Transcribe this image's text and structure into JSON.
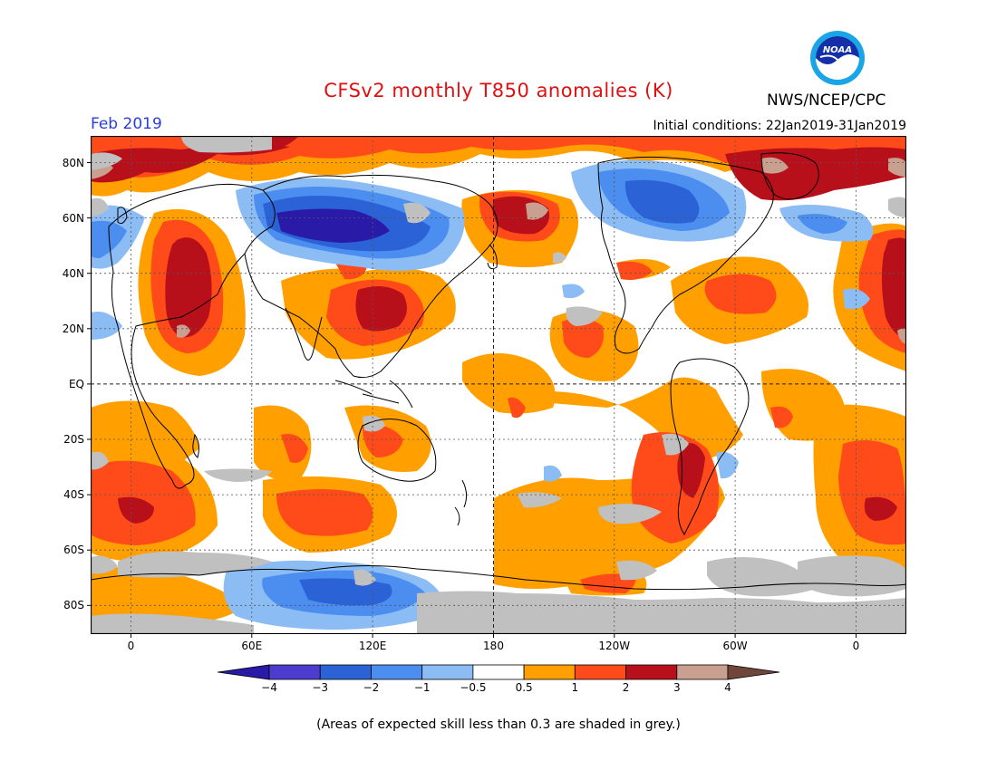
{
  "title": "CFSv2 monthly T850 anomalies (K)",
  "month": "Feb 2019",
  "agency": "NWS/NCEP/CPC",
  "logo_text": "NOAA",
  "initial_conditions": "Initial conditions: 22Jan2019-31Jan2019",
  "footnote": "(Areas of expected skill less than 0.3 are shaded in grey.)",
  "map": {
    "lon_ticks": [
      "0",
      "60E",
      "120E",
      "180",
      "120W",
      "60W",
      "0"
    ],
    "lat_ticks": [
      "80N",
      "60N",
      "40N",
      "20N",
      "EQ",
      "20S",
      "40S",
      "60S",
      "80S"
    ]
  },
  "colorbar": {
    "labels": [
      "−4",
      "−3",
      "−2",
      "−1",
      "−0.5",
      "0.5",
      "1",
      "2",
      "3",
      "4"
    ],
    "colors": [
      "#2a1aa8",
      "#4e3cd0",
      "#2b63d6",
      "#4b8ef0",
      "#8cbcf4",
      "#ffffff",
      "#ff9f00",
      "#ff4a1a",
      "#b8101a",
      "#c9a090",
      "#70463a"
    ],
    "skill_grey": "#c0c0c0"
  }
}
